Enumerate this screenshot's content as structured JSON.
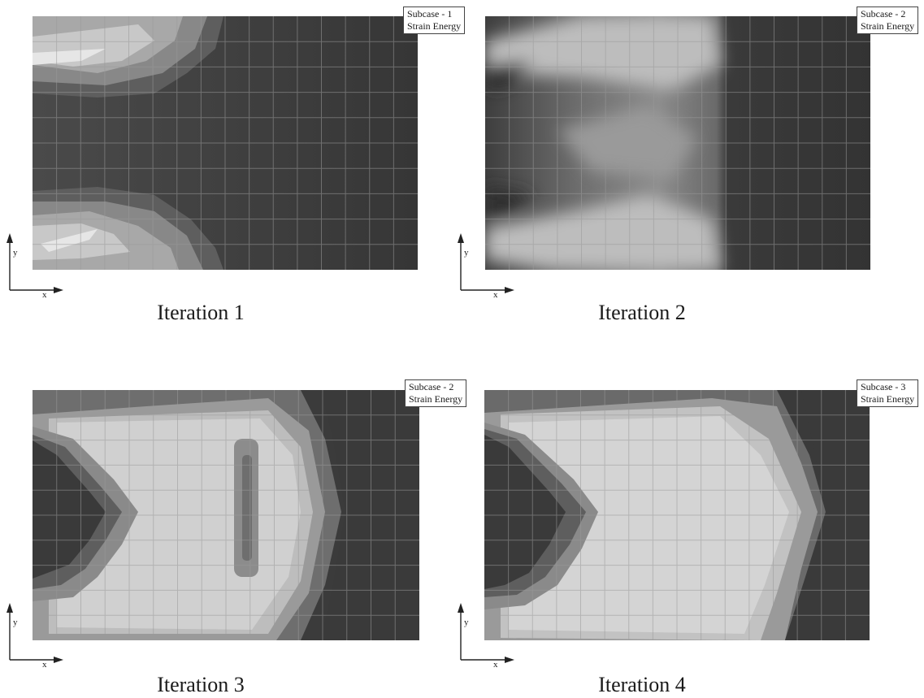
{
  "panels": [
    {
      "legend": [
        "Subcase - 1",
        "Strain Energy"
      ],
      "caption": "Iteration 1",
      "x_label": "x",
      "y_label": "y"
    },
    {
      "legend": [
        "Subcase - 2",
        "Strain Energy"
      ],
      "caption": "Iteration 2",
      "x_label": "x",
      "y_label": "y"
    },
    {
      "legend": [
        "Subcase - 2",
        "Strain Energy"
      ],
      "caption": "Iteration 3",
      "x_label": "x",
      "y_label": "y"
    },
    {
      "legend": [
        "Subcase - 3",
        "Strain Energy"
      ],
      "caption": "Iteration 4",
      "x_label": "x",
      "y_label": "y"
    }
  ]
}
